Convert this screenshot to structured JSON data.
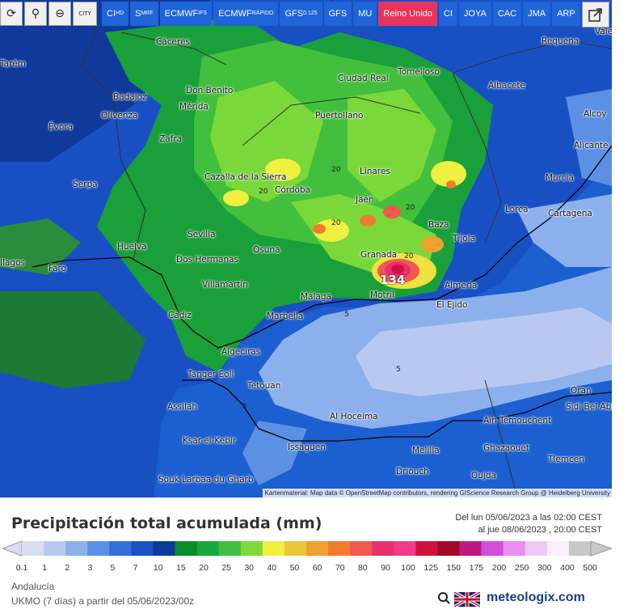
{
  "toolbar": {
    "icons": [
      "refresh-icon",
      "location-pin-icon",
      "zoom-out-icon",
      "city-icon"
    ],
    "city_label": "CITY",
    "models": [
      {
        "label": "CI",
        "sub": "HD",
        "active": false
      },
      {
        "label": "S",
        "sub": "MRF",
        "active": false
      },
      {
        "label": "ECMWF",
        "sub": "IFS",
        "active": false
      },
      {
        "label": "ECMWF",
        "sub": "RÁPIDO",
        "active": false
      },
      {
        "label": "GFS",
        "sub": "0.125",
        "active": false
      },
      {
        "label": "GFS",
        "sub": "",
        "active": false
      },
      {
        "label": "MU",
        "sub": "",
        "active": false
      },
      {
        "label": "Reino Unido",
        "sub": "",
        "active": true
      },
      {
        "label": "CI",
        "sub": "",
        "active": false
      },
      {
        "label": "JOYA",
        "sub": "",
        "active": false
      },
      {
        "label": "CAC",
        "sub": "",
        "active": false
      },
      {
        "label": "JMA",
        "sub": "",
        "active": false
      },
      {
        "label": "ARP",
        "sub": "",
        "active": false
      }
    ],
    "share_icon": "share-icon"
  },
  "cities": [
    {
      "name": "Cáceres"
    },
    {
      "name": "Tomelloso"
    },
    {
      "name": "Requena"
    },
    {
      "name": "Ciudad Real"
    },
    {
      "name": "Don Benito"
    },
    {
      "name": "Badajoz"
    },
    {
      "name": "Mérida"
    },
    {
      "name": "Albacete"
    },
    {
      "name": "Évora"
    },
    {
      "name": "Olivenza"
    },
    {
      "name": "Puertollano"
    },
    {
      "name": "Zafra"
    },
    {
      "name": "Alcoy"
    },
    {
      "name": "Alicante"
    },
    {
      "name": "Serpa"
    },
    {
      "name": "Cazalla de la Sierra"
    },
    {
      "name": "Linares"
    },
    {
      "name": "Murcia"
    },
    {
      "name": "Córdoba"
    },
    {
      "name": "Jaén"
    },
    {
      "name": "Lorca"
    },
    {
      "name": "Cartagena"
    },
    {
      "name": "Baza"
    },
    {
      "name": "Huelva"
    },
    {
      "name": "Sevilla"
    },
    {
      "name": "Tíjola"
    },
    {
      "name": "Osuna"
    },
    {
      "name": "Dos Hermanas"
    },
    {
      "name": "Granada"
    },
    {
      "name": "Faro"
    },
    {
      "name": "Villamartín"
    },
    {
      "name": "Almería"
    },
    {
      "name": "Málaga"
    },
    {
      "name": "Motril"
    },
    {
      "name": "El Ejido"
    },
    {
      "name": "Cádiz"
    },
    {
      "name": "Marbella"
    },
    {
      "name": "Algeciras"
    },
    {
      "name": "Tanger Eoll"
    },
    {
      "name": "Tetouan"
    },
    {
      "name": "Assilah"
    },
    {
      "name": "Al Hoceima"
    },
    {
      "name": "Oran"
    },
    {
      "name": "Ksar-el-Kebir"
    },
    {
      "name": "Melilla"
    },
    {
      "name": "Ain Témouchent"
    },
    {
      "name": "Sidi Bel Abbès"
    },
    {
      "name": "Issaguen"
    },
    {
      "name": "Ghazaouet"
    },
    {
      "name": "Tlemcen"
    },
    {
      "name": "Driouch"
    },
    {
      "name": "Oujda"
    },
    {
      "name": "Souk Larbaa du Gharb"
    },
    {
      "name": "Tarém"
    },
    {
      "name": "Valencia"
    },
    {
      "name": "Ilagos"
    }
  ],
  "max_value": "134",
  "contours": [
    "5",
    "5",
    "5",
    "20",
    "20",
    "20",
    "20",
    "20"
  ],
  "attribution": "Kartenmaterial: Map data © OpenStreetMap contributors, rendering GIScience Research Group @ Heidelberg University",
  "legend": {
    "title": "Precipitación total acumulada (mm)",
    "period_line1": "Del lun 05/06/2023 a las 02:00 CEST",
    "period_line2": "al jue 08/06/2023 , 20:00 CEST",
    "ticks": [
      "0.1",
      "1",
      "2",
      "3",
      "5",
      "7",
      "10",
      "15",
      "20",
      "25",
      "30",
      "40",
      "50",
      "60",
      "70",
      "80",
      "90",
      "100",
      "125",
      "150",
      "175",
      "200",
      "250",
      "300",
      "400",
      "500"
    ],
    "colors": [
      "#d8dcf4",
      "#b8c8f0",
      "#8cb0ec",
      "#5c90e4",
      "#3070d8",
      "#1a52c0",
      "#0f3a9c",
      "#0a8c2a",
      "#18a83c",
      "#40c040",
      "#80d838",
      "#f0f040",
      "#e8c838",
      "#f0a030",
      "#f07c30",
      "#f05850",
      "#e83070",
      "#f03c8c",
      "#d0103c",
      "#a0082a",
      "#c01880",
      "#d050d8",
      "#e890f0",
      "#f0c8f4",
      "#f8f0fa",
      "#c8c8c8"
    ],
    "region": "Andalucía",
    "model_info": "UKMO (7 días) a partir del 05/06/2023/00z",
    "brand": "meteologix.com"
  }
}
